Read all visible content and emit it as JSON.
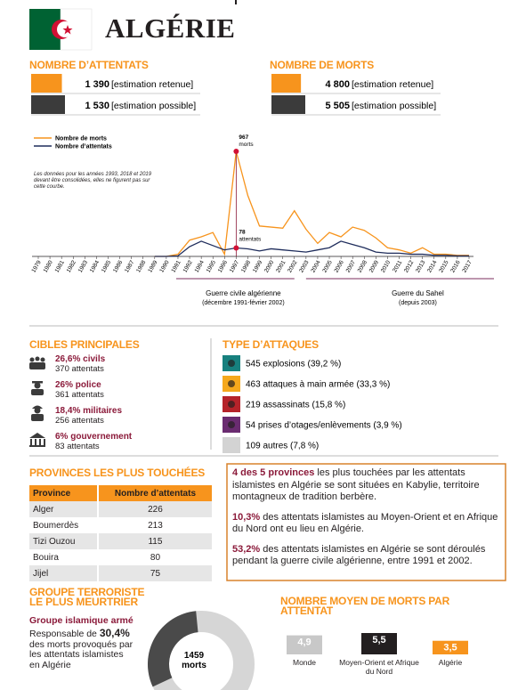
{
  "header": {
    "title": "ALGÉRIE"
  },
  "chart_data": [
    {
      "type": "hbar",
      "title": "NOMBRE D’ATTENTATS",
      "categories": [
        "[estimation retenue]",
        "[estimation possible]"
      ],
      "values": [
        1390,
        1530
      ],
      "value_labels": [
        "1 390",
        "1 530"
      ],
      "colors": [
        "#f7941d",
        "#3b3b3b"
      ]
    },
    {
      "type": "hbar",
      "title": "NOMBRE DE MORTS",
      "categories": [
        "[estimation retenue]",
        "[estimation possible]"
      ],
      "values": [
        4800,
        5505
      ],
      "value_labels": [
        "4 800",
        "5 505"
      ],
      "colors": [
        "#f7941d",
        "#3b3b3b"
      ]
    },
    {
      "type": "line",
      "categories": [
        "1979",
        "1980",
        "1981",
        "1982",
        "1983",
        "1984",
        "1985",
        "1986",
        "1987",
        "1988",
        "1989",
        "1990",
        "1991",
        "1992",
        "1994",
        "1995",
        "1996",
        "1997",
        "1998",
        "1999",
        "2000",
        "2001",
        "2002",
        "2003",
        "2004",
        "2005",
        "2006",
        "2007",
        "2008",
        "2009",
        "2010",
        "2011",
        "2012",
        "2013",
        "2014",
        "2015",
        "2016",
        "2017"
      ],
      "series": [
        {
          "name": "Nombre de morts",
          "color": "#f7941d",
          "values": [
            null,
            null,
            null,
            null,
            null,
            null,
            null,
            null,
            null,
            null,
            0,
            0,
            20,
            150,
            180,
            220,
            20,
            967,
            560,
            280,
            270,
            260,
            420,
            250,
            120,
            220,
            180,
            270,
            240,
            170,
            80,
            60,
            30,
            80,
            20,
            20,
            10,
            10
          ],
          "annotation": {
            "x": "1997",
            "lines": [
              "967",
              "morts"
            ]
          }
        },
        {
          "name": "Nombre d’attentats",
          "color": "#1f2d5c",
          "values": [
            null,
            null,
            null,
            null,
            null,
            null,
            null,
            null,
            null,
            null,
            0,
            0,
            5,
            90,
            140,
            100,
            60,
            78,
            70,
            50,
            70,
            60,
            50,
            40,
            60,
            80,
            140,
            110,
            80,
            40,
            30,
            30,
            20,
            20,
            10,
            10,
            5,
            5
          ],
          "annotation": {
            "x": "1997",
            "lines": [
              "78",
              "attentats"
            ]
          }
        }
      ],
      "note": "Les données pour les années 1993, 2018 et 2019 devant être consolidées, elles ne figurent pas sur cette courbe.",
      "periods": [
        {
          "range": [
            "1991",
            "2002"
          ],
          "lines": [
            "Guerre civile algérienne",
            "(décembre 1991-février 2002)"
          ]
        },
        {
          "range": [
            "2003",
            "2017"
          ],
          "lines": [
            "Guerre du Sahel",
            "(depuis 2003)"
          ]
        }
      ]
    },
    {
      "type": "donut",
      "values": [
        30.4
      ],
      "value_labels": [
        "30,4%"
      ],
      "color": "#4a4a4a",
      "center": [
        "1459",
        "morts"
      ]
    },
    {
      "type": "bar",
      "title": "NOMBRE MOYEN DE MORTS PAR ATTENTAT",
      "categories": [
        "Monde",
        "Moyen-Orient et Afrique du Nord",
        "Algérie"
      ],
      "values": [
        4.9,
        5.5,
        3.5
      ],
      "value_labels": [
        "4,9",
        "5,5",
        "3,5"
      ],
      "colors": [
        "#c8c8c8",
        "#231f20",
        "#f7941d"
      ]
    }
  ],
  "targets": {
    "title": "CIBLES PRINCIPALES",
    "items": [
      {
        "share": "26,6% civils",
        "count": "370 attentats"
      },
      {
        "share": "26% police",
        "count": "361 attentats"
      },
      {
        "share": "18,4% militaires",
        "count": "256 attentats"
      },
      {
        "share": "6% gouvernement",
        "count": "83 attentats"
      }
    ]
  },
  "attack_types": {
    "title": "TYPE D’ATTAQUES",
    "items": [
      {
        "label": "545 explosions (39,2 %)",
        "color": "#17807e"
      },
      {
        "label": "463 attaques à main armée (33,3 %)",
        "color": "#f5a81c"
      },
      {
        "label": "219 assassinats (15,8 %)",
        "color": "#b5232a"
      },
      {
        "label": "54 prises d’otages/enlèvements (3,9 %)",
        "color": "#6a2c70"
      },
      {
        "label": "109 autres (7,8 %)",
        "color": "#d3d3d3"
      }
    ]
  },
  "provinces": {
    "title": "PROVINCES LES PLUS TOUCHÉES",
    "table": {
      "header": [
        "Province",
        "Nombre d’attentats"
      ],
      "rows": [
        [
          "Alger",
          "226"
        ],
        [
          "Boumerdès",
          "213"
        ],
        [
          "Tizi Ouzou",
          "115"
        ],
        [
          "Bouira",
          "80"
        ],
        [
          "Jijel",
          "75"
        ]
      ]
    }
  },
  "facts": [
    {
      "lead": "4 des 5 provinces",
      "text": " les plus touchées par les attentats islamistes en Algérie se sont situées en Kabylie, territoire montagneux de tradition berbère."
    },
    {
      "lead": "10,3%",
      "text": " des attentats islamistes au Moyen-Orient et en Afrique du Nord ont eu lieu en Algérie."
    },
    {
      "lead": "53,2%",
      "text": " des attentats islamistes en Algérie se sont déroulés pendant la guerre civile algérienne, entre 1991 et 2002."
    }
  ],
  "group": {
    "title": [
      "GROUPE TERRORISTE",
      "LE PLUS MEURTRIER"
    ],
    "name": "Groupe islamique armé",
    "before": "Responsable de ",
    "after": " des morts provoqués par les attentats islamistes en Algérie"
  }
}
